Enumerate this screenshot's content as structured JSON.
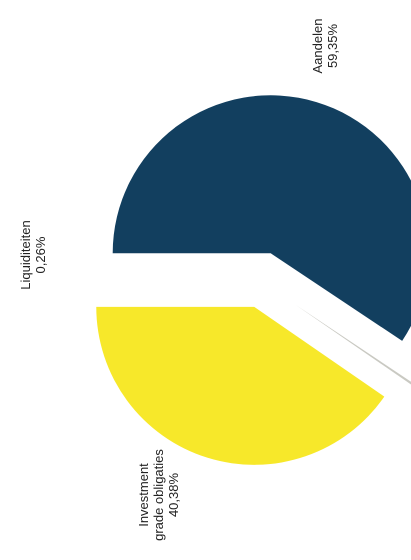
{
  "chart_data": {
    "type": "pie",
    "title": "",
    "slices": [
      {
        "label": "Aandelen",
        "value": 59.35,
        "value_text": "59,35%",
        "color": "#123f5f"
      },
      {
        "label": "Liquiditeiten",
        "value": 0.26,
        "value_text": "0,26%",
        "color": "#c9c9c2"
      },
      {
        "label": "Investment grade obligaties",
        "label_lines": [
          "Investment",
          "grade obligaties"
        ],
        "value": 40.38,
        "value_text": "40,38%",
        "color": "#f7e82a"
      }
    ],
    "exploded": true,
    "label_orientation": "rotated"
  }
}
